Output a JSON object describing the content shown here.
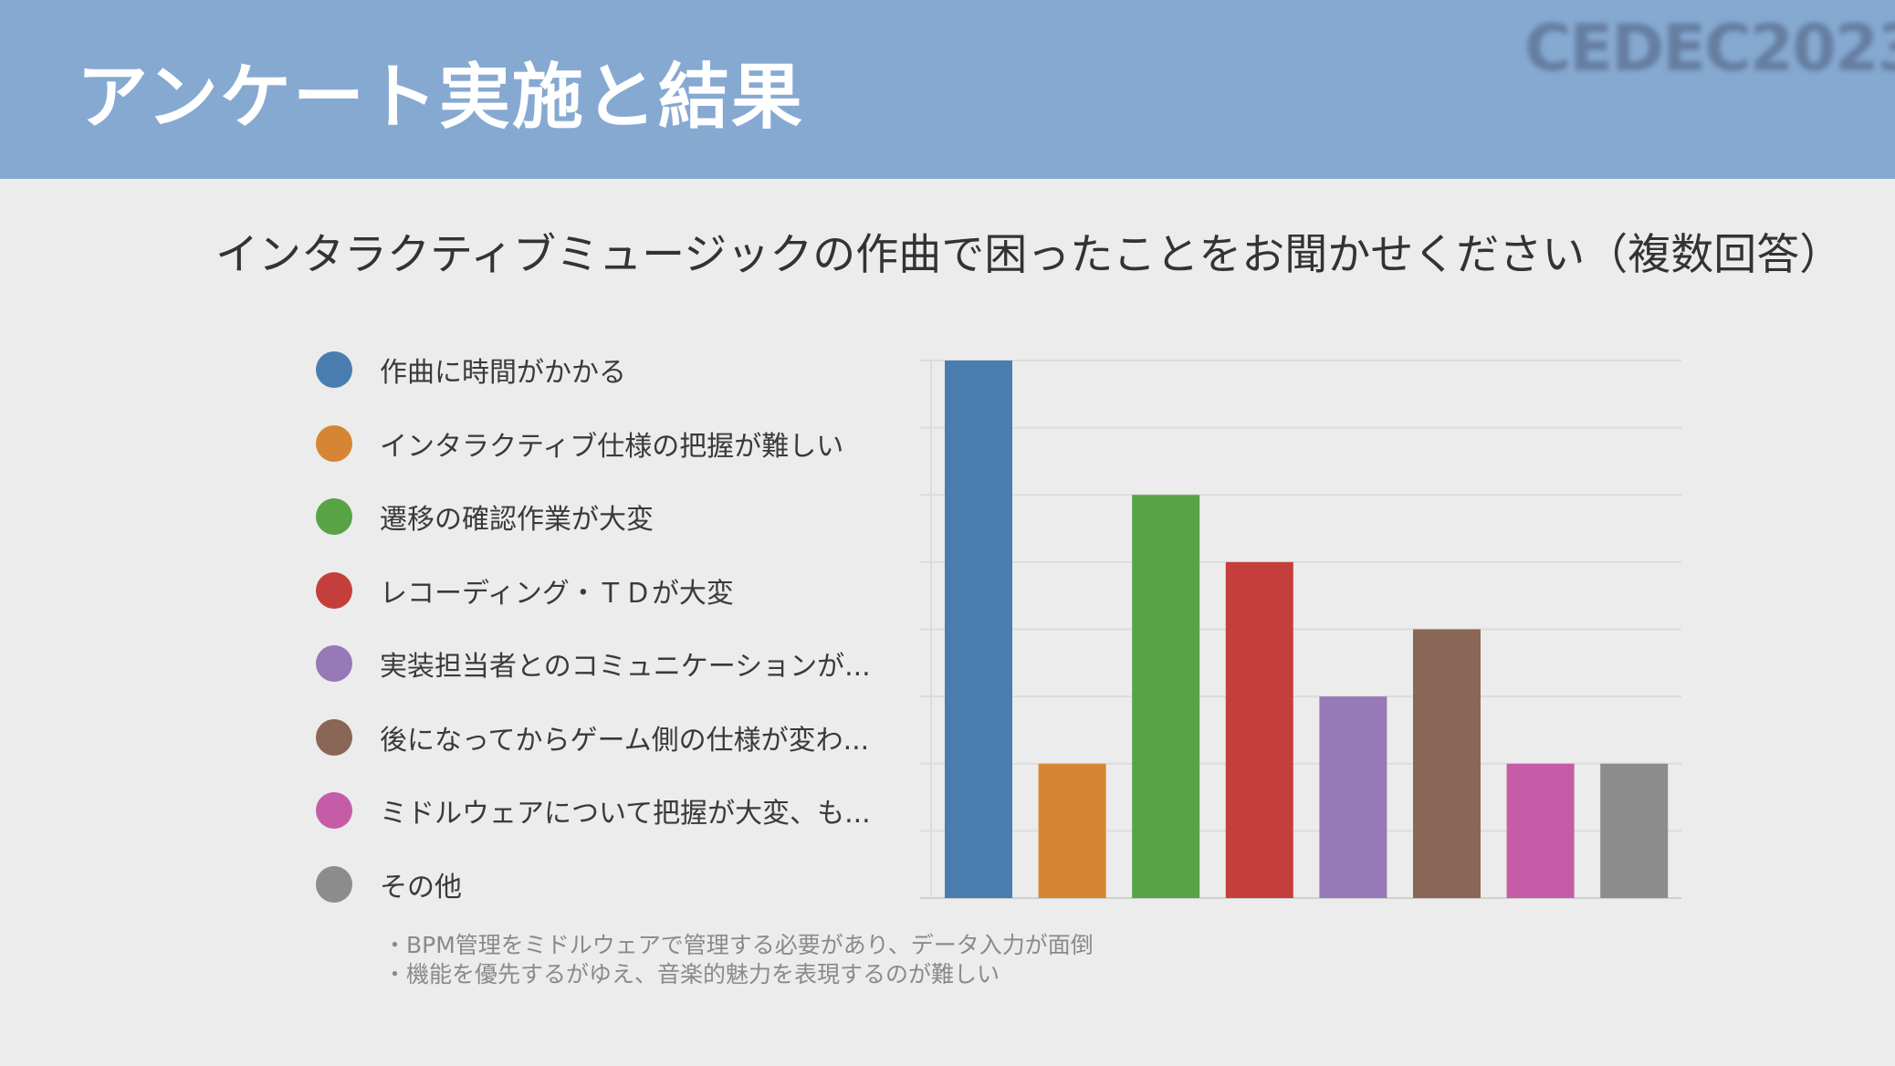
{
  "header": {
    "title": "アンケート実施と結果",
    "logo_text": "CEDEC2023",
    "background": "#86a9d1"
  },
  "question": "インタラクティブミュージックの作曲で困ったことをお聞かせください（複数回答）",
  "notes": [
    "・BPM管理をミドルウェアで管理する必要があり、データ入力が面倒",
    "・機能を優先するがゆえ、音楽的魅力を表現するのが難しい"
  ],
  "chart_data": {
    "type": "bar",
    "categories": [
      "作曲に時間がかかる",
      "インタラクティブ仕様の把握が難しい",
      "遷移の確認作業が大変",
      "レコーディング・ＴＤが大変",
      "実装担当者とのコミュニケーションが...",
      "後になってからゲーム側の仕様が変わ...",
      "ミドルウェアについて把握が大変、も...",
      "その他"
    ],
    "values": [
      8,
      2,
      6,
      5,
      3,
      4,
      2,
      2
    ],
    "colors": [
      "#4a7daf",
      "#d68632",
      "#57a346",
      "#c43f3b",
      "#9679b6",
      "#8a6657",
      "#c65ca8",
      "#8c8c8c"
    ],
    "ylim": [
      0,
      8
    ],
    "grid": true,
    "legend_position": "left"
  }
}
